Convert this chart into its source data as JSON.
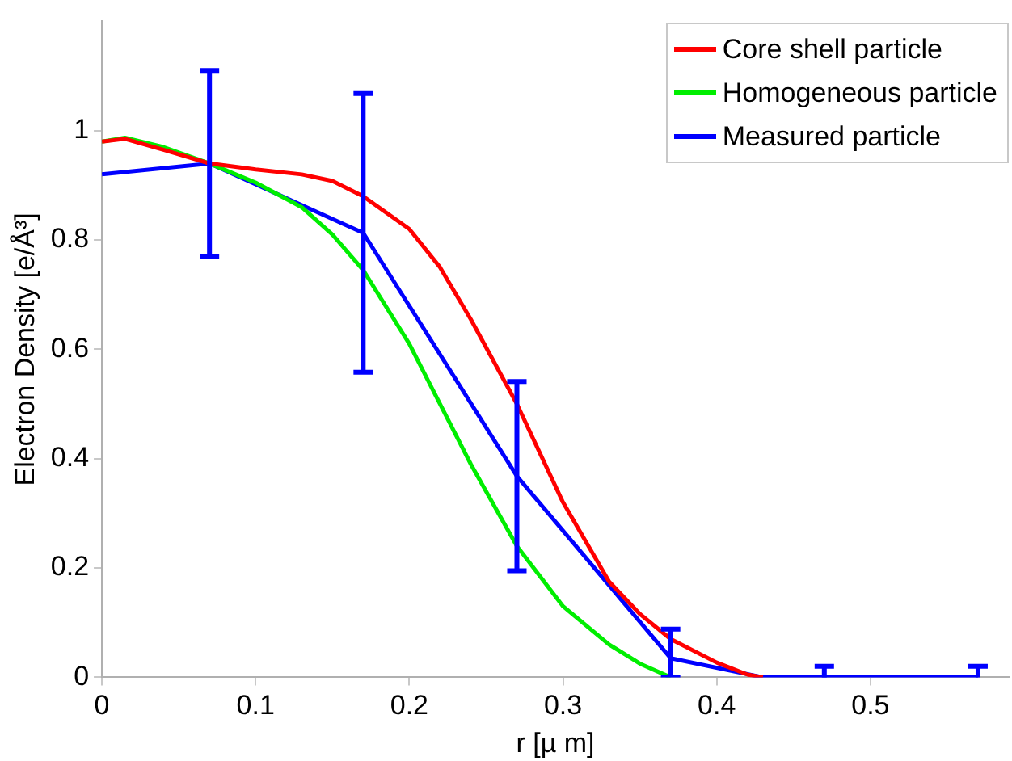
{
  "chart_data": {
    "type": "line",
    "xlabel": "r [µ m]",
    "ylabel": "Electron Density [e/Å³]",
    "xlim": [
      0,
      0.59
    ],
    "ylim": [
      0,
      1.2
    ],
    "xticks": [
      0,
      0.1,
      0.2,
      0.3,
      0.4,
      0.5
    ],
    "yticks": [
      0,
      0.2,
      0.4,
      0.6,
      0.8,
      1
    ],
    "grid": false,
    "legend": "top right",
    "marker": "none",
    "line_style": "solid",
    "series": [
      {
        "name": "Core shell particle",
        "color": "#ff0000",
        "x": [
          0,
          0.015,
          0.04,
          0.07,
          0.1,
          0.13,
          0.15,
          0.17,
          0.2,
          0.22,
          0.24,
          0.27,
          0.3,
          0.33,
          0.35,
          0.37,
          0.4,
          0.42,
          0.43
        ],
        "values": [
          0.98,
          0.985,
          0.965,
          0.94,
          0.929,
          0.92,
          0.908,
          0.88,
          0.82,
          0.75,
          0.655,
          0.5,
          0.32,
          0.175,
          0.116,
          0.07,
          0.027,
          0.005,
          0
        ]
      },
      {
        "name": "Homogeneous particle",
        "color": "#00ee00",
        "x": [
          0,
          0.015,
          0.04,
          0.07,
          0.1,
          0.13,
          0.15,
          0.17,
          0.2,
          0.22,
          0.24,
          0.27,
          0.3,
          0.33,
          0.35,
          0.37
        ],
        "values": [
          0.98,
          0.987,
          0.97,
          0.94,
          0.905,
          0.86,
          0.81,
          0.745,
          0.61,
          0.5,
          0.39,
          0.24,
          0.13,
          0.06,
          0.025,
          0
        ]
      },
      {
        "name": "Measured particle",
        "color": "#0000ff",
        "x": [
          0,
          0.07,
          0.17,
          0.27,
          0.37,
          0.43,
          0.47,
          0.57
        ],
        "values": [
          0.92,
          0.94,
          0.813,
          0.368,
          0.035,
          0,
          0,
          0
        ],
        "errors": [
          null,
          0.17,
          0.255,
          0.173,
          [
            0,
            0.088
          ],
          null,
          0.02,
          0.02
        ]
      }
    ]
  }
}
